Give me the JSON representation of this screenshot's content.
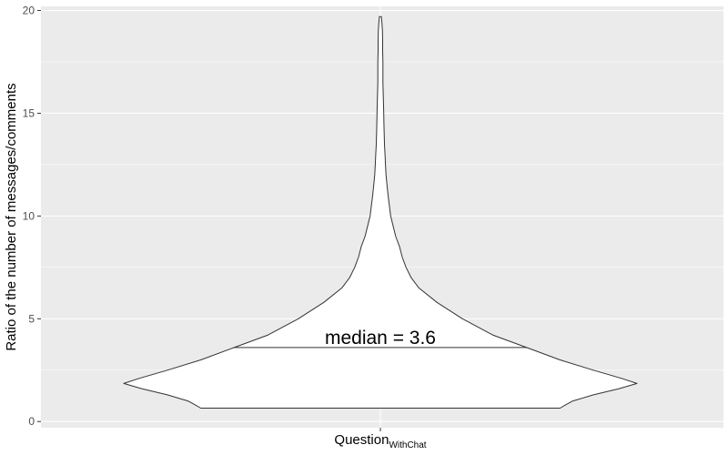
{
  "chart_data": {
    "type": "violin",
    "title": "",
    "ylabel": "Ratio of the number of messages/comments",
    "xlabel": "",
    "ylim": [
      -0.3,
      20.2
    ],
    "yticks": [
      0,
      5,
      10,
      15,
      20
    ],
    "ytick_labels": [
      "0",
      "5",
      "10",
      "15",
      "20"
    ],
    "grid": true,
    "categories": [
      {
        "label_main": "Question",
        "label_sub": "WithChat"
      }
    ],
    "series": [
      {
        "category": "QuestionWithChat",
        "min": 0.65,
        "max": 19.7,
        "median": 3.6,
        "density_profile": {
          "y": [
            0.65,
            0.8,
            1.0,
            1.3,
            1.6,
            1.85,
            2.1,
            2.5,
            3.0,
            3.6,
            4.2,
            5.0,
            5.8,
            6.5,
            7.0,
            7.5,
            8.0,
            8.5,
            9.0,
            9.5,
            10.0,
            10.5,
            11.0,
            11.5,
            12.0,
            12.5,
            13.0,
            13.5,
            14.0,
            14.5,
            15.0,
            15.5,
            16.0,
            16.5,
            17.0,
            17.5,
            18.0,
            18.5,
            19.0,
            19.4,
            19.7
          ],
          "width": [
            0.7,
            0.72,
            0.75,
            0.83,
            0.93,
            1.0,
            0.94,
            0.83,
            0.7,
            0.57,
            0.44,
            0.32,
            0.22,
            0.15,
            0.12,
            0.1,
            0.085,
            0.075,
            0.06,
            0.05,
            0.04,
            0.035,
            0.03,
            0.026,
            0.022,
            0.02,
            0.018,
            0.016,
            0.015,
            0.014,
            0.013,
            0.012,
            0.011,
            0.01,
            0.01,
            0.01,
            0.009,
            0.009,
            0.008,
            0.006,
            0.004
          ]
        }
      }
    ],
    "annotations": [
      {
        "text": "median = 3.6",
        "y": 3.6
      }
    ],
    "colors": {
      "panel": "#ebebeb",
      "grid_major": "#ffffff",
      "violin_fill": "#ffffff",
      "violin_stroke": "#333333",
      "tick": "#4d4d4d",
      "text": "#000000"
    }
  }
}
